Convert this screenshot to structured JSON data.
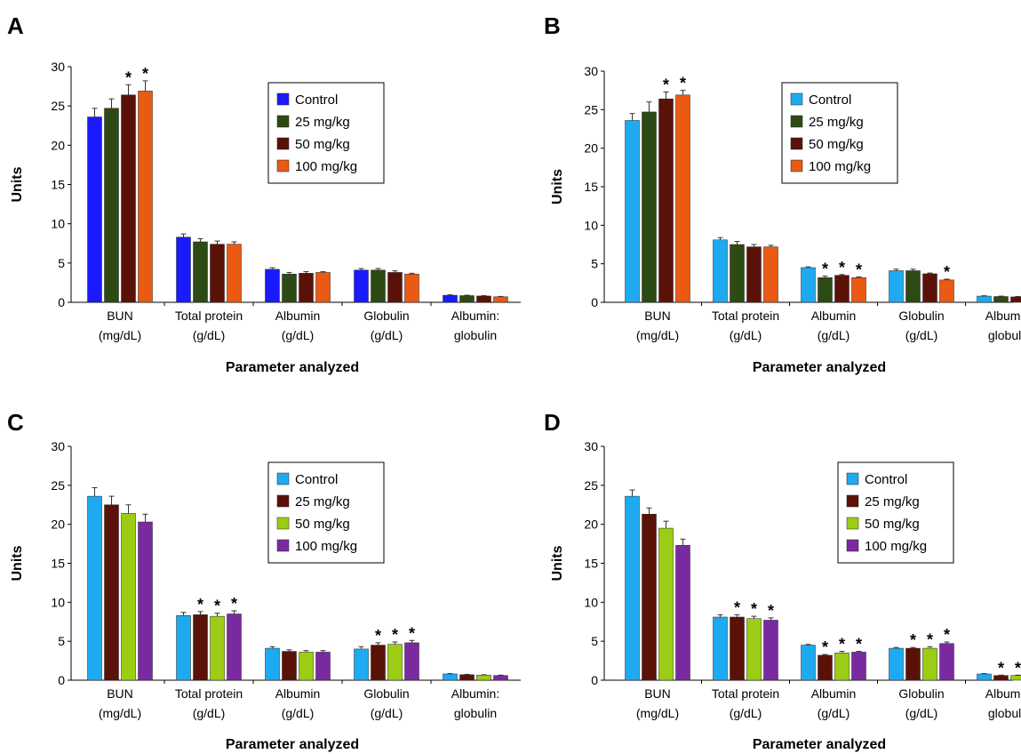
{
  "chart_data": [
    {
      "panel": "A",
      "type": "bar",
      "ylabel": "Units",
      "xlabel": "Parameter analyzed",
      "ylim": [
        0,
        30
      ],
      "yticks": [
        0,
        5,
        10,
        15,
        20,
        25,
        30
      ],
      "categories": [
        [
          "BUN",
          "(mg/dL)"
        ],
        [
          "Total protein",
          "(g/dL)"
        ],
        [
          "Albumin",
          "(g/dL)"
        ],
        [
          "Globulin",
          "(g/dL)"
        ],
        [
          "Albumin:",
          "globulin"
        ]
      ],
      "legend": "top-right",
      "series": [
        {
          "name": "Control",
          "color": "#1a1aff",
          "values": [
            23.6,
            8.3,
            4.2,
            4.1,
            0.9
          ],
          "errors": [
            1.1,
            0.4,
            0.2,
            0.2,
            0.05
          ],
          "sig": [
            false,
            false,
            false,
            false,
            false
          ]
        },
        {
          "name": "25 mg/kg",
          "color": "#2e4a14",
          "values": [
            24.7,
            7.7,
            3.6,
            4.1,
            0.85
          ],
          "errors": [
            1.2,
            0.4,
            0.2,
            0.2,
            0.05
          ],
          "sig": [
            false,
            false,
            false,
            false,
            false
          ]
        },
        {
          "name": "50 mg/kg",
          "color": "#5a1208",
          "values": [
            26.4,
            7.4,
            3.7,
            3.8,
            0.8
          ],
          "errors": [
            1.3,
            0.4,
            0.2,
            0.2,
            0.05
          ],
          "sig": [
            true,
            false,
            false,
            false,
            false
          ]
        },
        {
          "name": "100 mg/kg",
          "color": "#ea5a12",
          "values": [
            26.9,
            7.4,
            3.8,
            3.6,
            0.7
          ],
          "errors": [
            1.3,
            0.3,
            0.1,
            0.1,
            0.05
          ],
          "sig": [
            true,
            false,
            false,
            false,
            false
          ]
        }
      ]
    },
    {
      "panel": "B",
      "type": "bar",
      "ylabel": "Units",
      "xlabel": "Parameter analyzed",
      "ylim": [
        0,
        30
      ],
      "yticks": [
        0,
        5,
        10,
        15,
        20,
        25,
        30
      ],
      "categories": [
        [
          "BUN",
          "(mg/dL)"
        ],
        [
          "Total protein",
          "(g/dL)"
        ],
        [
          "Albumin",
          "(g/dL)"
        ],
        [
          "Globulin",
          "(g/dL)"
        ],
        [
          "Albumin:",
          "globulin"
        ]
      ],
      "legend": "top-right",
      "series": [
        {
          "name": "Control",
          "color": "#1eaaf0",
          "values": [
            23.6,
            8.1,
            4.5,
            4.1,
            0.8
          ],
          "errors": [
            0.9,
            0.3,
            0.1,
            0.2,
            0.05
          ],
          "sig": [
            false,
            false,
            false,
            false,
            false
          ]
        },
        {
          "name": "25 mg/kg",
          "color": "#2e4a14",
          "values": [
            24.7,
            7.5,
            3.2,
            4.1,
            0.75
          ],
          "errors": [
            1.3,
            0.4,
            0.2,
            0.2,
            0.05
          ],
          "sig": [
            false,
            false,
            true,
            false,
            false
          ]
        },
        {
          "name": "50 mg/kg",
          "color": "#5a1208",
          "values": [
            26.4,
            7.2,
            3.5,
            3.7,
            0.7
          ],
          "errors": [
            0.9,
            0.3,
            0.1,
            0.1,
            0.05
          ],
          "sig": [
            true,
            false,
            true,
            false,
            false
          ]
        },
        {
          "name": "100 mg/kg",
          "color": "#ea5a12",
          "values": [
            26.9,
            7.2,
            3.2,
            2.9,
            0.55
          ],
          "errors": [
            0.6,
            0.2,
            0.1,
            0.1,
            0.05
          ],
          "sig": [
            true,
            false,
            true,
            true,
            false
          ]
        }
      ]
    },
    {
      "panel": "C",
      "type": "bar",
      "ylabel": "Units",
      "xlabel": "Parameter analyzed",
      "ylim": [
        0,
        30
      ],
      "yticks": [
        0,
        5,
        10,
        15,
        20,
        25,
        30
      ],
      "categories": [
        [
          "BUN",
          "(mg/dL)"
        ],
        [
          "Total protein",
          "(g/dL)"
        ],
        [
          "Albumin",
          "(g/dL)"
        ],
        [
          "Globulin",
          "(g/dL)"
        ],
        [
          "Albumin:",
          "globulin"
        ]
      ],
      "legend": "top-right",
      "series": [
        {
          "name": "Control",
          "color": "#1eaaf0",
          "values": [
            23.6,
            8.3,
            4.1,
            4.0,
            0.8
          ],
          "errors": [
            1.1,
            0.4,
            0.2,
            0.3,
            0.05
          ],
          "sig": [
            false,
            false,
            false,
            false,
            false
          ]
        },
        {
          "name": "25 mg/kg",
          "color": "#5a1208",
          "values": [
            22.5,
            8.4,
            3.7,
            4.5,
            0.7
          ],
          "errors": [
            1.1,
            0.4,
            0.2,
            0.3,
            0.05
          ],
          "sig": [
            false,
            true,
            false,
            true,
            false
          ]
        },
        {
          "name": "50 mg/kg",
          "color": "#9ccc14",
          "values": [
            21.4,
            8.2,
            3.6,
            4.6,
            0.65
          ],
          "errors": [
            1.1,
            0.4,
            0.2,
            0.3,
            0.05
          ],
          "sig": [
            false,
            true,
            false,
            true,
            false
          ]
        },
        {
          "name": "100 mg/kg",
          "color": "#7a2aa0",
          "values": [
            20.3,
            8.5,
            3.6,
            4.8,
            0.6
          ],
          "errors": [
            1.0,
            0.4,
            0.2,
            0.3,
            0.05
          ],
          "sig": [
            false,
            true,
            false,
            true,
            false
          ]
        }
      ]
    },
    {
      "panel": "D",
      "type": "bar",
      "ylabel": "Units",
      "xlabel": "Parameter analyzed",
      "ylim": [
        0,
        30
      ],
      "yticks": [
        0,
        5,
        10,
        15,
        20,
        25,
        30
      ],
      "categories": [
        [
          "BUN",
          "(mg/dL)"
        ],
        [
          "Total protein",
          "(g/dL)"
        ],
        [
          "Albumin",
          "(g/dL)"
        ],
        [
          "Globulin",
          "(g/dL)"
        ],
        [
          "Albumin:",
          "globulin"
        ]
      ],
      "legend": "top-right",
      "series": [
        {
          "name": "Control",
          "color": "#1eaaf0",
          "values": [
            23.6,
            8.1,
            4.5,
            4.1,
            0.8
          ],
          "errors": [
            0.8,
            0.3,
            0.1,
            0.1,
            0.05
          ],
          "sig": [
            false,
            false,
            false,
            false,
            false
          ]
        },
        {
          "name": "25 mg/kg",
          "color": "#5a1208",
          "values": [
            21.3,
            8.1,
            3.2,
            4.1,
            0.6
          ],
          "errors": [
            0.8,
            0.3,
            0.1,
            0.1,
            0.05
          ],
          "sig": [
            false,
            true,
            true,
            true,
            true
          ]
        },
        {
          "name": "50 mg/kg",
          "color": "#9ccc14",
          "values": [
            19.5,
            7.9,
            3.5,
            4.1,
            0.6
          ],
          "errors": [
            0.9,
            0.3,
            0.2,
            0.2,
            0.05
          ],
          "sig": [
            false,
            true,
            true,
            true,
            true
          ]
        },
        {
          "name": "100 mg/kg",
          "color": "#7a2aa0",
          "values": [
            17.3,
            7.7,
            3.6,
            4.7,
            0.55
          ],
          "errors": [
            0.8,
            0.3,
            0.1,
            0.2,
            0.05
          ],
          "sig": [
            false,
            true,
            true,
            true,
            true
          ]
        }
      ]
    }
  ]
}
